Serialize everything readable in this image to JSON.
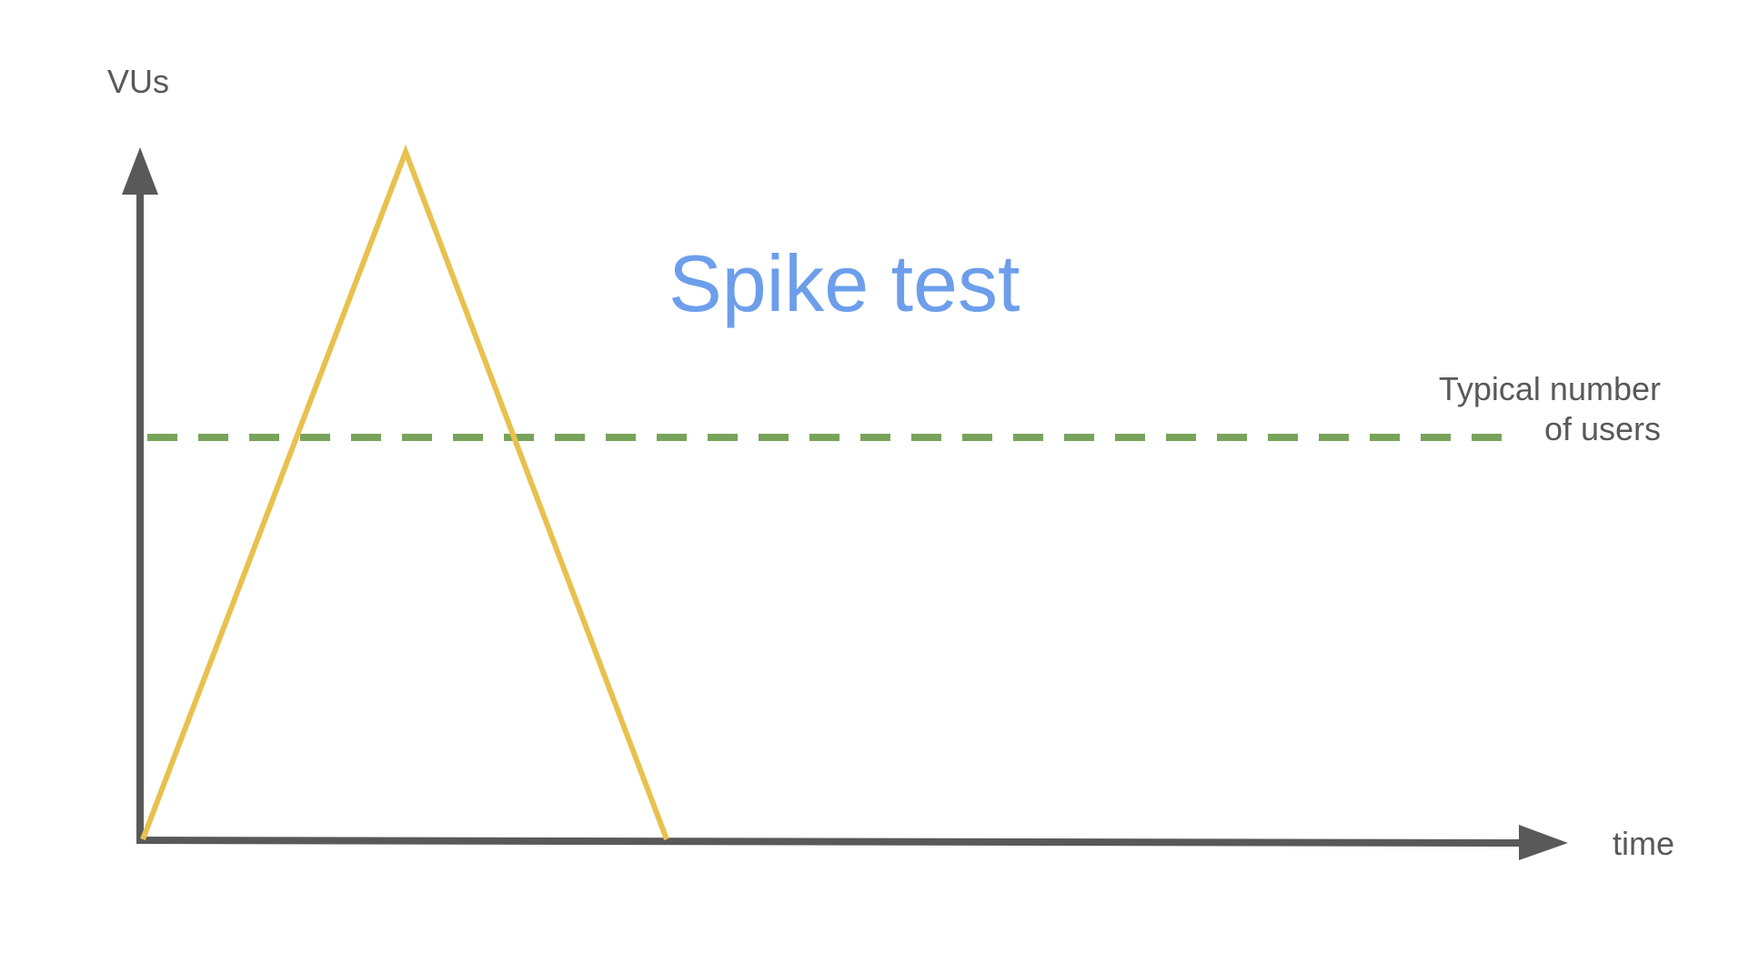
{
  "diagram": {
    "title": "Spike test",
    "y_axis_label": "VUs",
    "x_axis_label": "time",
    "reference_label_line1": "Typical number",
    "reference_label_line2": "of users",
    "colors": {
      "axis": "#595959",
      "spike": "#E8C14E",
      "reference": "#77A35A",
      "title": "#6D9EEB",
      "label": "#595959"
    },
    "spike_profile": {
      "description_points": [
        {
          "time": 0,
          "vus": 0
        },
        {
          "time": 1,
          "vus": 1
        },
        {
          "time": 2,
          "vus": 0
        }
      ]
    }
  }
}
